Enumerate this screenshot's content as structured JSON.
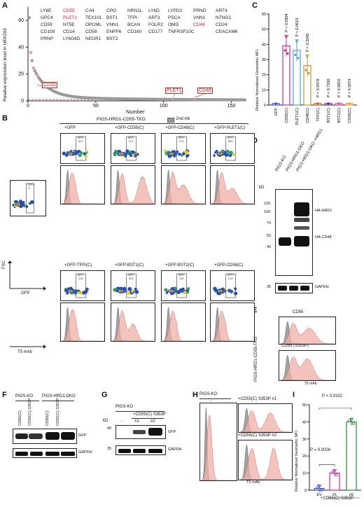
{
  "panels": {
    "A": "A",
    "B": "B",
    "C": "C",
    "D": "D",
    "E": "E",
    "F": "F",
    "G": "G",
    "H": "H",
    "I": "I"
  },
  "panelA": {
    "ylabel": "Relative expression level in HEK293",
    "xlabel": "Number",
    "xticks": [
      "0",
      "50",
      "100",
      "150"
    ],
    "yticks": [
      "0",
      "20",
      "40",
      "60"
    ],
    "gene_rows": [
      [
        "LY6E",
        "CD55",
        "CA4",
        "CPO",
        "NRN1L",
        "LY6D",
        "LYPD2",
        "PRND",
        "ART4"
      ],
      [
        "GPC4",
        "PLET1",
        "TEX101",
        "BST1",
        "TFPI",
        "ART3",
        "PSCA",
        "VNN1",
        "NTNG1"
      ],
      [
        "CD59",
        "NT5E",
        "OPCML",
        "VNN1",
        "BCAN",
        "FOLR2",
        "OMG",
        "CD48",
        "CD24"
      ],
      [
        "CD109",
        "CD14",
        "CD58",
        "ENPP6",
        "CD160",
        "CD177",
        "TNFRSF10C",
        "",
        "CEACAM6"
      ],
      [
        "PRNP",
        "LY6G6D",
        "NEGR1",
        "BST2",
        "",
        "",
        "",
        "",
        ""
      ]
    ],
    "red_genes": [
      "CD55",
      "PLET1",
      "CD48"
    ],
    "callouts": [
      "CD55",
      "PLET1",
      "CD48"
    ]
  },
  "panelB": {
    "title": "PIGS-HRD1-CD55-TKO",
    "legend_2nd": "2nd Ab",
    "row1": [
      "+GFP",
      "+GFP-CD55(C)",
      "+GFP-CD48(C)",
      "+GFP-PLET1(C)"
    ],
    "row2": [
      "+GFP-TFPI(C)",
      "+GFP-BST1(C)",
      "+GFP-BST2(C)",
      "+GFP-CD58(C)"
    ],
    "gfp_pct_row1": [
      "21.3",
      "17.4",
      "13.1",
      "96.9"
    ],
    "gfp_pct_row2": [
      "0.13",
      "20.6",
      "0.87",
      "1.19"
    ],
    "single_pct": "0",
    "axis_fsc": "FSC",
    "axis_gfp": "GFP",
    "axis_t5": "T5 mAb",
    "gate_label": "GFP+"
  },
  "panelC": {
    "ylabel": "Relative Normalized Geometric MFI",
    "yticks": [
      "0",
      "10",
      "20",
      "30",
      "40",
      "50",
      "60"
    ],
    "categories": [
      "GFP",
      "CD55(C)",
      "PLET1(C)",
      "CD48(C)",
      "TFPI(C)",
      "BST1(C)",
      "BST2(C)",
      "CD58(C)"
    ],
    "pvalues": [
      "P = 0.0804",
      "P = 0.0619",
      "P = 0.2045",
      "P = 0.9978",
      "P = 0.7260",
      "P = 0.8810",
      "P = 0.5074"
    ]
  },
  "panelD": {
    "kd": "kD",
    "cols": [
      "PIGS-KO",
      "PIGS-HRD1-DKO",
      "PIGS-HRD1-DKO +HRD1"
    ],
    "markers_top": [
      "120",
      "100",
      "70",
      "50",
      "40"
    ],
    "marker_bottom": "35",
    "band_labels": [
      "HA-HRD1",
      "HA-CD48",
      "GAPDH"
    ]
  },
  "panelE": {
    "side_label": "PIGS-HRD1-CD55-TKO",
    "top_label": "CD55",
    "bottom_label": "CD55 (S353P)",
    "xlabel": "T5 mAb"
  },
  "panelF": {
    "groups": [
      "PIGS-KO",
      "PIGS-HRD1-DKO"
    ],
    "cols": [
      "CD55(C)",
      "CD55(C) S353P",
      "CD55(C)",
      "CD55(C) S353P"
    ],
    "bands": [
      "GFP",
      "GAPDH"
    ]
  },
  "panelG": {
    "kd": "kD",
    "group": "PIGS-KO",
    "sub": "+CD55(C) S353P",
    "cols": [
      "-",
      "#1",
      "#2"
    ],
    "markers": [
      "40",
      "35"
    ],
    "bands": [
      "GFP",
      "GAPDH"
    ]
  },
  "panelH": {
    "left_label": "PIGS-KO",
    "left_sub": "-",
    "right1": "+CD55(C) S353P #1",
    "right2": "+CD55(C) S353P #2",
    "xlabel": "T5 mAb"
  },
  "panelI": {
    "ylabel": "Relative Normalized Geometric MFI",
    "yticks": [
      "0",
      "10",
      "20",
      "30",
      "40",
      "50"
    ],
    "p1": "P = 0.0152",
    "p2": "P = 0.0026",
    "cats": [
      "EV",
      "#1",
      "#2"
    ],
    "xlabel": "+CD55(C) S353P"
  },
  "chart_data": [
    {
      "type": "scatter",
      "ylabel": "Relative expression level in HEK293",
      "xlabel": "Number",
      "xlim": [
        0,
        160
      ],
      "ylim": [
        0,
        70
      ],
      "highlight": [
        {
          "name": "CD55",
          "x": 7,
          "y": 12
        },
        {
          "name": "PLET1",
          "x": 107,
          "y": 3
        },
        {
          "name": "CD48",
          "x": 123,
          "y": 2.5
        }
      ]
    },
    {
      "type": "bar",
      "categories": [
        "GFP",
        "CD55(C)",
        "PLET1(C)",
        "CD48(C)",
        "TFPI(C)",
        "BST1(C)",
        "BST2(C)",
        "CD58(C)"
      ],
      "values": [
        1,
        39,
        36,
        26,
        1,
        1,
        1,
        1
      ],
      "ylim": [
        0,
        60
      ],
      "colors": [
        "#3a4fd0",
        "#c82aa0",
        "#4ea0d8",
        "#c9962c",
        "#c35a2a",
        "#5a2a8a",
        "#d24a8a",
        "#ee9a2a"
      ]
    },
    {
      "type": "bar",
      "categories": [
        "EV",
        "#1",
        "#2"
      ],
      "values": [
        1,
        10,
        40
      ],
      "ylim": [
        0,
        50
      ],
      "colors": [
        "#3a4fd0",
        "#c82aa0",
        "#2a8a3a"
      ]
    }
  ]
}
